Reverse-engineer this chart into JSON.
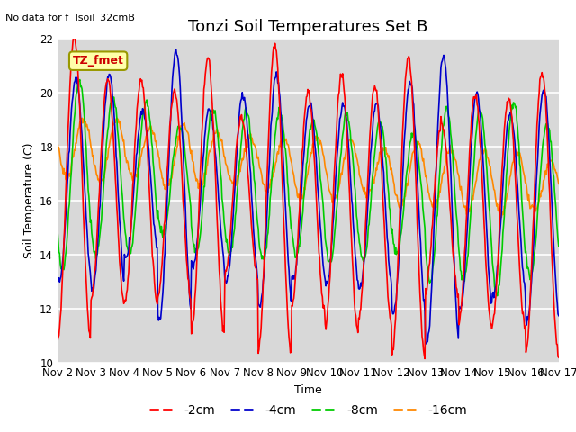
{
  "title": "Tonzi Soil Temperatures Set B",
  "xlabel": "Time",
  "ylabel": "Soil Temperature (C)",
  "note": "No data for f_Tsoil_32cmB",
  "legend_label": "TZ_fmet",
  "ylim": [
    10,
    22
  ],
  "yticks": [
    10,
    12,
    14,
    16,
    18,
    20,
    22
  ],
  "xtick_labels": [
    "Nov 2",
    "Nov 3",
    "Nov 4",
    "Nov 5",
    "Nov 6",
    "Nov 7",
    "Nov 8",
    "Nov 9",
    "Nov 10",
    "Nov 11",
    "Nov 12",
    "Nov 13",
    "Nov 14",
    "Nov 15",
    "Nov 16",
    "Nov 17"
  ],
  "series": {
    "-2cm": {
      "color": "#ff0000",
      "lw": 1.2
    },
    "-4cm": {
      "color": "#0000cc",
      "lw": 1.2
    },
    "-8cm": {
      "color": "#00cc00",
      "lw": 1.2
    },
    "-16cm": {
      "color": "#ff8800",
      "lw": 1.2
    }
  },
  "bg_color": "#d8d8d8",
  "outer_bg": "#ffffff",
  "grid_color": "#ffffff",
  "title_fontsize": 13,
  "axis_fontsize": 9,
  "tick_fontsize": 8.5
}
